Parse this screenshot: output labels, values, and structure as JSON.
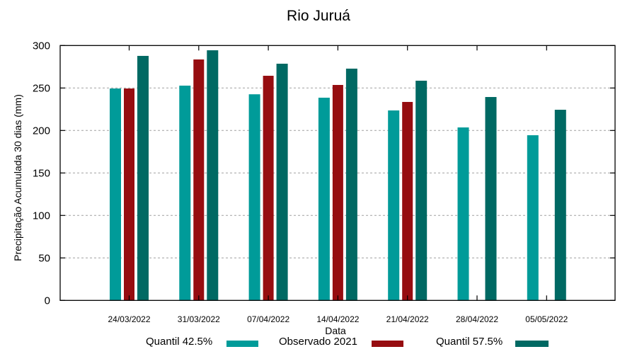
{
  "chart_data": {
    "type": "bar",
    "title": "Rio Juruá",
    "xlabel": "Data",
    "ylabel": "Precipitação Acumulada 30 dias (mm)",
    "ylim": [
      0,
      300
    ],
    "yticks": [
      0,
      50,
      100,
      150,
      200,
      250,
      300
    ],
    "grid": true,
    "legend_position": "bottom",
    "categories": [
      "24/03/2022",
      "31/03/2022",
      "07/04/2022",
      "14/04/2022",
      "21/04/2022",
      "28/04/2022",
      "05/05/2022"
    ],
    "series": [
      {
        "name": "Quantil 42.5%",
        "color": "#009b99",
        "values": [
          249.4,
          252.8,
          242.6,
          238.6,
          223.6,
          203.6,
          194.4
        ]
      },
      {
        "name": "Observado 2021",
        "color": "#960d10",
        "values": [
          249.4,
          283.6,
          264.4,
          253.6,
          233.6,
          null,
          null
        ]
      },
      {
        "name": "Quantil 57.5%",
        "color": "#006963",
        "values": [
          287.8,
          294.4,
          278.6,
          272.8,
          258.6,
          239.4,
          224.4
        ]
      }
    ]
  },
  "legend": {
    "items": [
      {
        "label": "Quantil 42.5%",
        "color": "#009b99"
      },
      {
        "label": "Observado 2021",
        "color": "#960d10"
      },
      {
        "label": "Quantil 57.5%",
        "color": "#006963"
      }
    ]
  }
}
